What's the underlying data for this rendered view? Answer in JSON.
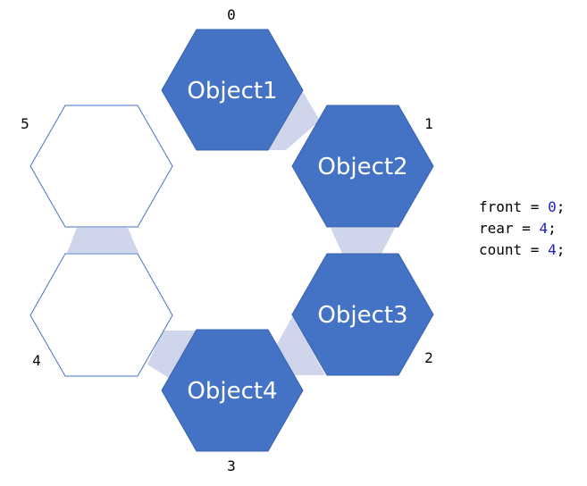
{
  "diagram": {
    "slots": [
      {
        "index": "0",
        "object": "Object1",
        "filled": true
      },
      {
        "index": "1",
        "object": "Object2",
        "filled": true
      },
      {
        "index": "2",
        "object": "Object3",
        "filled": true
      },
      {
        "index": "3",
        "object": "Object4",
        "filled": true
      },
      {
        "index": "4",
        "object": "",
        "filled": false
      },
      {
        "index": "5",
        "object": "",
        "filled": false
      }
    ],
    "colors": {
      "filled_hex": "#4472c4",
      "empty_hex_stroke": "#4472c4",
      "connector": "#cfd5ea"
    }
  },
  "code": {
    "front_var": "front",
    "front_value": "0",
    "rear_var": "rear",
    "rear_value": "4",
    "count_var": "count",
    "count_value": "4",
    "op": " = ",
    "end": ";"
  }
}
